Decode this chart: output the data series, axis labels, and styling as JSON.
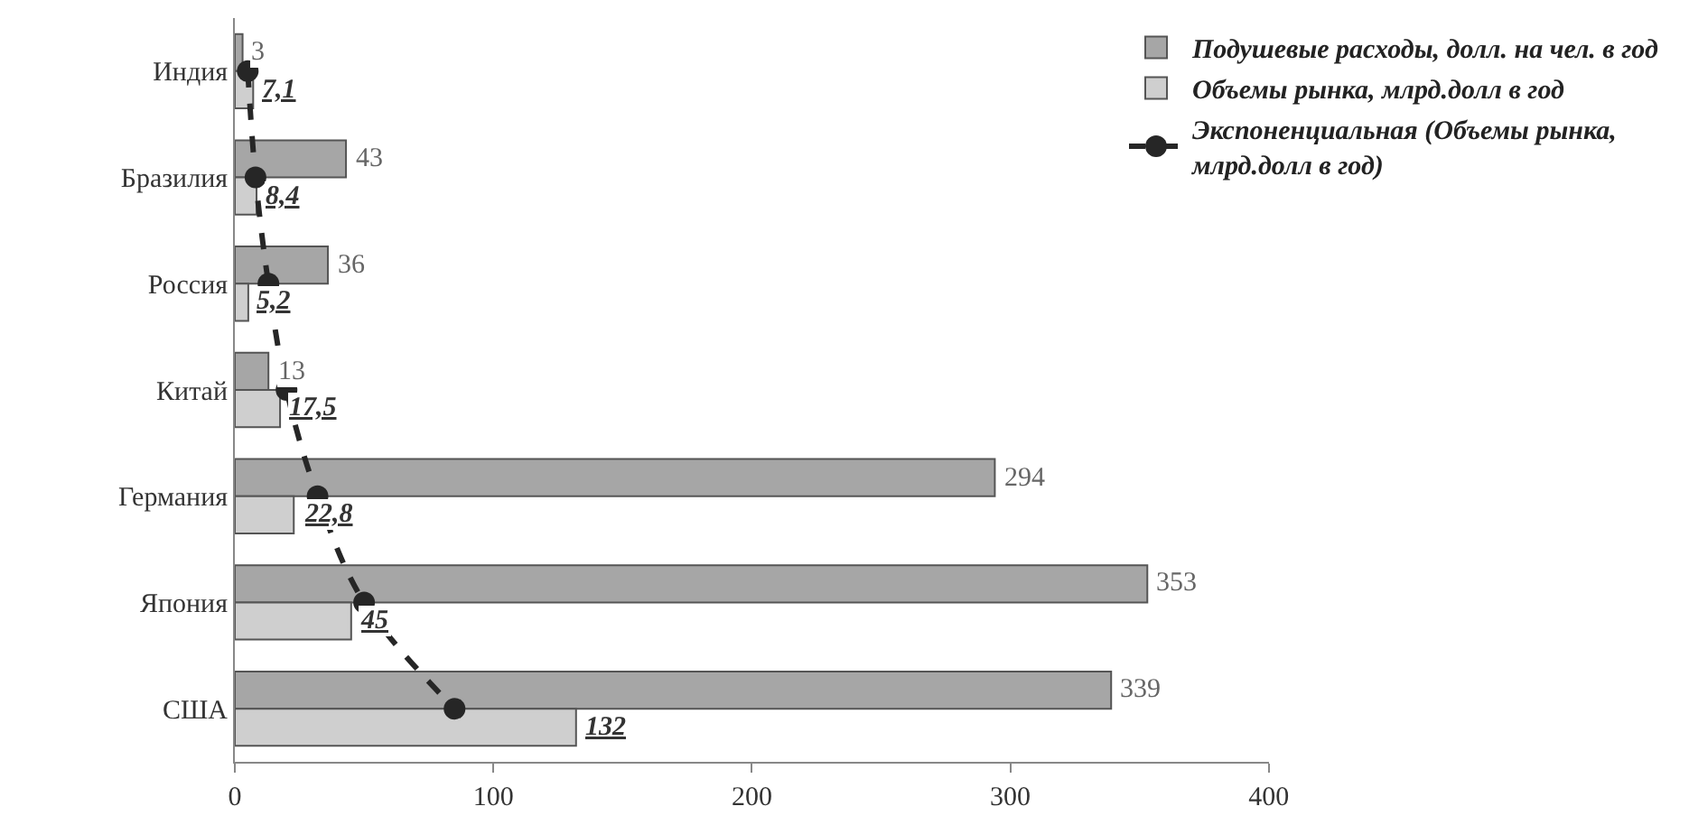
{
  "chart_data": {
    "type": "bar",
    "orientation": "horizontal",
    "categories": [
      "Индия",
      "Бразилия",
      "Россия",
      "Китай",
      "Германия",
      "Япония",
      "США"
    ],
    "series": [
      {
        "name": "Подушевые расходы, долл. на чел. в год",
        "color": "#a6a6a6",
        "values": [
          3,
          43,
          36,
          13,
          294,
          353,
          339
        ],
        "value_labels": [
          "3",
          "43",
          "36",
          "13",
          "294",
          "353",
          "339"
        ]
      },
      {
        "name": "Объемы рынка, млрд.долл в год",
        "color": "#cfcfcf",
        "values": [
          7.1,
          8.4,
          5.2,
          17.5,
          22.8,
          45,
          132
        ],
        "value_labels": [
          "7,1",
          "8,4",
          "5,2",
          "17,5",
          "22,8",
          "45",
          "132"
        ]
      },
      {
        "name": "Экспоненциальная (Объемы рынка, млрд.долл в год)",
        "type": "line",
        "color": "#262626",
        "line_style": "dashed",
        "marker": "circle",
        "values": [
          5,
          8,
          13,
          20,
          32,
          50,
          85
        ]
      }
    ],
    "xlim": [
      0,
      400
    ],
    "xticks": [
      0,
      100,
      200,
      300,
      400
    ],
    "legend": "top right"
  }
}
